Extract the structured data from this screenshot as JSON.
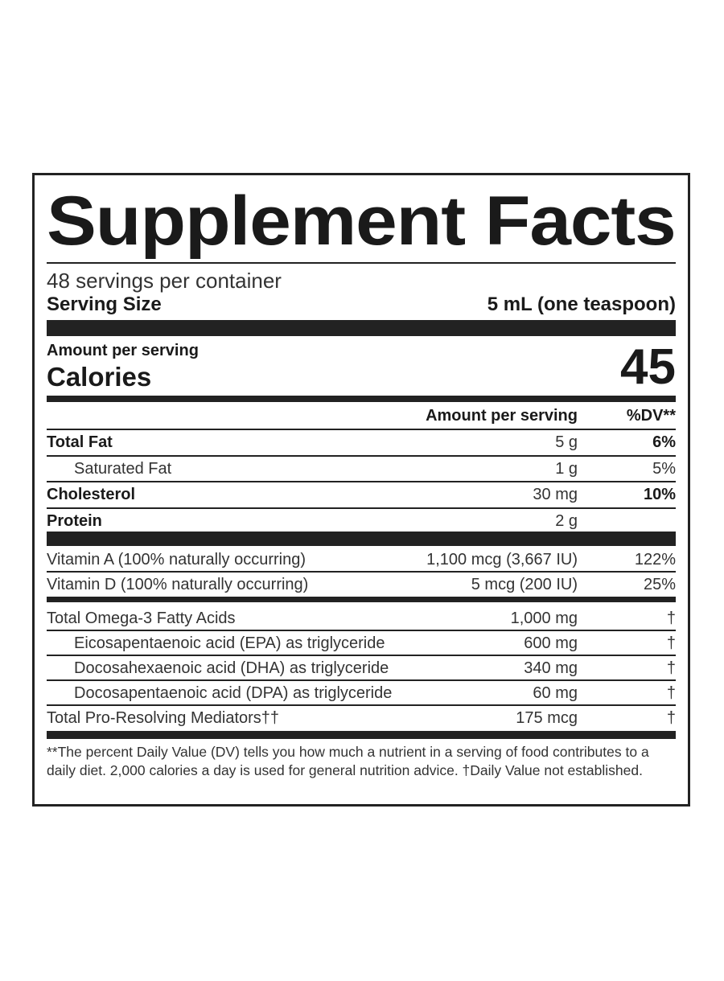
{
  "title": "Supplement Facts",
  "servings_per_container": "48 servings per container",
  "serving_size": {
    "label": "Serving Size",
    "value": "5 mL (one teaspoon)"
  },
  "amount_per_serving": "Amount per serving",
  "calories": {
    "label": "Calories",
    "value": "45"
  },
  "columns": {
    "amount": "Amount per serving",
    "dv": "%DV**"
  },
  "group1": [
    {
      "name": "Total Fat",
      "amount": "5 g",
      "dv": "6%",
      "bold": true,
      "indent": false
    },
    {
      "name": "Saturated Fat",
      "amount": "1 g",
      "dv": "5%",
      "bold": false,
      "indent": true
    },
    {
      "name": "Cholesterol",
      "amount": "30 mg",
      "dv": "10%",
      "bold": true,
      "indent": false
    },
    {
      "name": "Protein",
      "amount": "2 g",
      "dv": "",
      "bold": true,
      "indent": false
    }
  ],
  "group2": [
    {
      "name": "Vitamin A (100% naturally occurring)",
      "amount": "1,100 mcg (3,667 IU)",
      "dv": "122%"
    },
    {
      "name": "Vitamin D (100% naturally occurring)",
      "amount": "5 mcg (200 IU)",
      "dv": "25%"
    }
  ],
  "group3": [
    {
      "name": "Total Omega-3 Fatty Acids",
      "amount": "1,000 mg",
      "dv": "†",
      "indent": false
    },
    {
      "name": "Eicosapentaenoic acid (EPA) as triglyceride",
      "amount": "600 mg",
      "dv": "†",
      "indent": true
    },
    {
      "name": "Docosahexaenoic acid (DHA) as triglyceride",
      "amount": "340 mg",
      "dv": "†",
      "indent": true
    },
    {
      "name": "Docosapentaenoic acid (DPA) as triglyceride",
      "amount": "60 mg",
      "dv": "†",
      "indent": true
    },
    {
      "name": "Total Pro-Resolving Mediators††",
      "amount": "175 mcg",
      "dv": "†",
      "indent": false
    }
  ],
  "footnote": "**The percent Daily Value (DV) tells you how much a nutrient in a serving of food contributes to a daily diet. 2,000 calories a day is used for general nutrition advice. †Daily Value not established."
}
